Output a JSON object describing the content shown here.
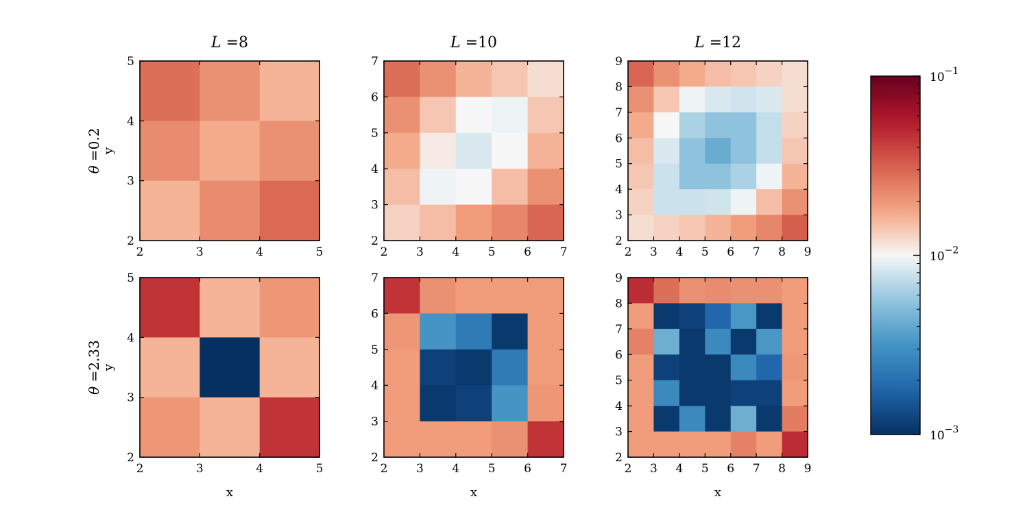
{
  "chart_data": {
    "type": "heatmap",
    "colorbar": {
      "scale": "log",
      "vmin": 0.001,
      "vmax": 0.1,
      "colormap": "RdBu_r",
      "tick_labels": [
        {
          "base": "10",
          "exp": "−1",
          "value": 0.1
        },
        {
          "base": "10",
          "exp": "−2",
          "value": 0.01
        },
        {
          "base": "10",
          "exp": "−3",
          "value": 0.001
        }
      ]
    },
    "xlabel": "x",
    "ylabel": "y",
    "panels": [
      {
        "row": 0,
        "col": 0,
        "title_var": "L",
        "title_eq": "=",
        "title_val": "8",
        "row_var": "θ",
        "row_eq": "=",
        "row_val": "0.2",
        "xlim": [
          2,
          5
        ],
        "ylim": [
          2,
          5
        ],
        "xticks": [
          "2",
          "3",
          "4",
          "5"
        ],
        "yticks": [
          "2",
          "3",
          "4",
          "5"
        ],
        "grid_rows_top_to_bottom": [
          [
            0.028,
            0.021,
            0.016
          ],
          [
            0.022,
            0.017,
            0.021
          ],
          [
            0.016,
            0.022,
            0.029
          ]
        ]
      },
      {
        "row": 0,
        "col": 1,
        "title_var": "L",
        "title_eq": "=",
        "title_val": "10",
        "xlim": [
          2,
          7
        ],
        "ylim": [
          2,
          7
        ],
        "xticks": [
          "2",
          "3",
          "4",
          "5",
          "6",
          "7"
        ],
        "yticks": [
          "2",
          "3",
          "4",
          "5",
          "6",
          "7"
        ],
        "grid_rows_top_to_bottom": [
          [
            0.028,
            0.021,
            0.016,
            0.014,
            0.012
          ],
          [
            0.021,
            0.014,
            0.01,
            0.0095,
            0.014
          ],
          [
            0.017,
            0.011,
            0.0085,
            0.01,
            0.016
          ],
          [
            0.015,
            0.0095,
            0.01,
            0.015,
            0.021
          ],
          [
            0.013,
            0.015,
            0.019,
            0.023,
            0.03
          ]
        ]
      },
      {
        "row": 0,
        "col": 2,
        "title_var": "L",
        "title_eq": "=",
        "title_val": "12",
        "xlim": [
          2,
          9
        ],
        "ylim": [
          2,
          9
        ],
        "xticks": [
          "2",
          "3",
          "4",
          "5",
          "6",
          "7",
          "8",
          "9"
        ],
        "yticks": [
          "2",
          "3",
          "4",
          "5",
          "6",
          "7",
          "8",
          "9"
        ],
        "grid_rows_top_to_bottom": [
          [
            0.03,
            0.021,
            0.017,
            0.015,
            0.014,
            0.013,
            0.012
          ],
          [
            0.021,
            0.014,
            0.0095,
            0.0085,
            0.008,
            0.0085,
            0.012
          ],
          [
            0.017,
            0.01,
            0.0065,
            0.0055,
            0.0055,
            0.0075,
            0.013
          ],
          [
            0.015,
            0.0085,
            0.0055,
            0.0042,
            0.0055,
            0.0075,
            0.014
          ],
          [
            0.014,
            0.0078,
            0.0055,
            0.0055,
            0.0065,
            0.0095,
            0.016
          ],
          [
            0.013,
            0.0078,
            0.0078,
            0.008,
            0.0095,
            0.015,
            0.021
          ],
          [
            0.012,
            0.013,
            0.014,
            0.016,
            0.019,
            0.023,
            0.032
          ]
        ]
      },
      {
        "row": 1,
        "col": 0,
        "row_var": "θ",
        "row_eq": "=",
        "row_val": "2.33",
        "xlim": [
          2,
          5
        ],
        "ylim": [
          2,
          5
        ],
        "xticks": [
          "2",
          "3",
          "4",
          "5"
        ],
        "yticks": [
          "2",
          "3",
          "4",
          "5"
        ],
        "grid_rows_top_to_bottom": [
          [
            0.045,
            0.016,
            0.02
          ],
          [
            0.016,
            0.001,
            0.016
          ],
          [
            0.02,
            0.016,
            0.045
          ]
        ]
      },
      {
        "row": 1,
        "col": 1,
        "xlim": [
          2,
          7
        ],
        "ylim": [
          2,
          7
        ],
        "xticks": [
          "2",
          "3",
          "4",
          "5",
          "6",
          "7"
        ],
        "yticks": [
          "2",
          "3",
          "4",
          "5",
          "6",
          "7"
        ],
        "grid_rows_top_to_bottom": [
          [
            0.045,
            0.021,
            0.019,
            0.019,
            0.019
          ],
          [
            0.02,
            0.0032,
            0.0023,
            0.0011,
            0.019
          ],
          [
            0.019,
            0.0012,
            0.0011,
            0.0023,
            0.019
          ],
          [
            0.019,
            0.0011,
            0.0012,
            0.0032,
            0.02
          ],
          [
            0.019,
            0.019,
            0.019,
            0.021,
            0.045
          ]
        ]
      },
      {
        "row": 1,
        "col": 2,
        "xlim": [
          2,
          9
        ],
        "ylim": [
          2,
          9
        ],
        "xticks": [
          "2",
          "3",
          "4",
          "5",
          "6",
          "7",
          "8",
          "9"
        ],
        "yticks": [
          "2",
          "3",
          "4",
          "5",
          "6",
          "7",
          "8",
          "9"
        ],
        "grid_rows_top_to_bottom": [
          [
            0.048,
            0.028,
            0.021,
            0.022,
            0.021,
            0.021,
            0.019
          ],
          [
            0.019,
            0.0011,
            0.0012,
            0.0018,
            0.0033,
            0.0011,
            0.019
          ],
          [
            0.024,
            0.0043,
            0.0011,
            0.0028,
            0.0011,
            0.0033,
            0.019
          ],
          [
            0.019,
            0.0012,
            0.0011,
            0.0011,
            0.0028,
            0.0018,
            0.02
          ],
          [
            0.019,
            0.0028,
            0.0011,
            0.0011,
            0.0012,
            0.0012,
            0.019
          ],
          [
            0.019,
            0.0011,
            0.0028,
            0.0011,
            0.0043,
            0.0011,
            0.025
          ],
          [
            0.019,
            0.019,
            0.019,
            0.019,
            0.024,
            0.019,
            0.048
          ]
        ]
      }
    ]
  }
}
